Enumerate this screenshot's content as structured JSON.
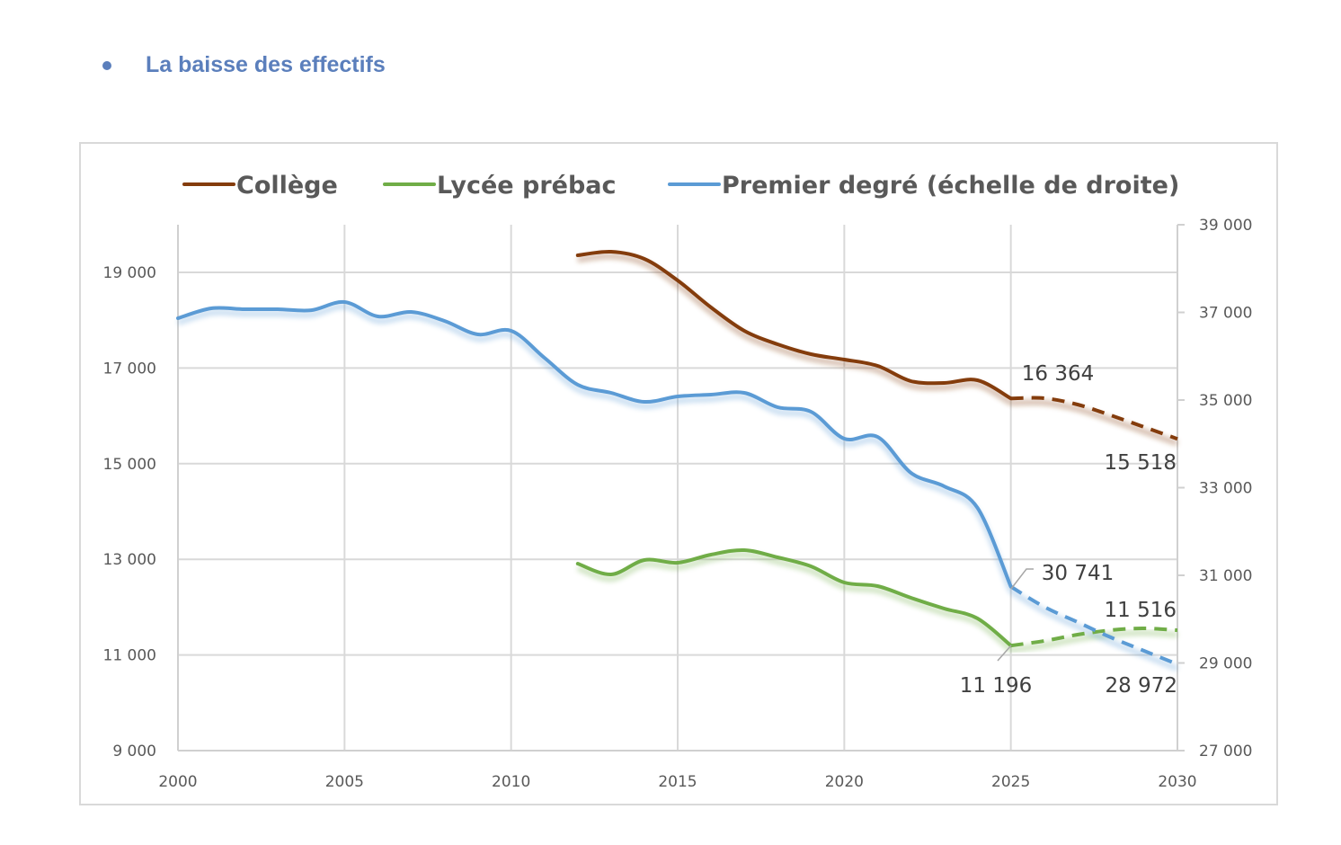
{
  "page": {
    "heading": "La baisse des effectifs",
    "accent_color": "#5b7fbc"
  },
  "chart_data": {
    "type": "line",
    "title": "",
    "xlabel": "",
    "ylabel": "",
    "xlim": [
      2000,
      2030
    ],
    "x_ticks": [
      "2000",
      "2005",
      "2010",
      "2015",
      "2020",
      "2025",
      "2030"
    ],
    "x_tick_values": [
      2000,
      2005,
      2010,
      2015,
      2020,
      2025,
      2030
    ],
    "ylim_left": [
      9000,
      20000
    ],
    "y_ticks_left": [
      "9 000",
      "11 000",
      "13 000",
      "15 000",
      "17 000",
      "19 000"
    ],
    "y_tick_values_left": [
      9000,
      11000,
      13000,
      15000,
      17000,
      19000
    ],
    "ylim_right": [
      27000,
      39000
    ],
    "y_ticks_right": [
      "27 000",
      "29 000",
      "31 000",
      "33 000",
      "35 000",
      "37 000",
      "39 000"
    ],
    "y_tick_values_right": [
      27000,
      29000,
      31000,
      33000,
      35000,
      37000,
      39000
    ],
    "grid": true,
    "legend_position": "top",
    "forecast_from": 2025,
    "series": [
      {
        "name": "Collège",
        "axis": "left",
        "color": "#843c0c",
        "x": [
          2012,
          2013,
          2014,
          2015,
          2016,
          2017,
          2018,
          2019,
          2020,
          2021,
          2022,
          2023,
          2024,
          2025,
          2026,
          2027,
          2028,
          2029,
          2030
        ],
        "values": [
          19357,
          19432,
          19282,
          18831,
          18267,
          17778,
          17496,
          17289,
          17177,
          17045,
          16726,
          16688,
          16744,
          16364,
          16368,
          16237,
          16011,
          15767,
          15518
        ]
      },
      {
        "name": "Lycée prébac",
        "axis": "left",
        "color": "#70ad47",
        "x": [
          2012,
          2013,
          2014,
          2015,
          2016,
          2017,
          2018,
          2019,
          2020,
          2021,
          2022,
          2023,
          2024,
          2025,
          2026,
          2027,
          2028,
          2029,
          2030
        ],
        "values": [
          12910,
          12684,
          12985,
          12929,
          13098,
          13192,
          13041,
          12853,
          12515,
          12440,
          12195,
          11970,
          11763,
          11196,
          11293,
          11425,
          11519,
          11556,
          11516
        ]
      },
      {
        "name": "Premier degré (échelle de droite)",
        "axis": "right",
        "color": "#5b9bd5",
        "x": [
          2000,
          2001,
          2002,
          2003,
          2004,
          2005,
          2006,
          2007,
          2008,
          2009,
          2010,
          2011,
          2012,
          2013,
          2014,
          2015,
          2016,
          2017,
          2018,
          2019,
          2020,
          2021,
          2022,
          2023,
          2024,
          2025,
          2026,
          2027,
          2028,
          2029,
          2030
        ],
        "values": [
          36867,
          37092,
          37072,
          37072,
          37050,
          37236,
          36908,
          37010,
          36805,
          36497,
          36580,
          35964,
          35349,
          35164,
          34959,
          35082,
          35123,
          35164,
          34836,
          34733,
          34118,
          34159,
          33338,
          33030,
          32538,
          30741,
          30282,
          29933,
          29585,
          29277,
          28972
        ]
      }
    ],
    "annotations": [
      {
        "text": "16 364",
        "series": "Collège",
        "x": 2025,
        "value": 16364
      },
      {
        "text": "15 518",
        "series": "Collège",
        "x": 2030,
        "value": 15518
      },
      {
        "text": "30 741",
        "series": "Premier degré (échelle de droite)",
        "x": 2025,
        "value": 30741
      },
      {
        "text": "28 972",
        "series": "Premier degré (échelle de droite)",
        "x": 2030,
        "value": 28972
      },
      {
        "text": "11 196",
        "series": "Lycée prébac",
        "x": 2025,
        "value": 11196
      },
      {
        "text": "11 516",
        "series": "Lycée prébac",
        "x": 2030,
        "value": 11516
      }
    ]
  }
}
